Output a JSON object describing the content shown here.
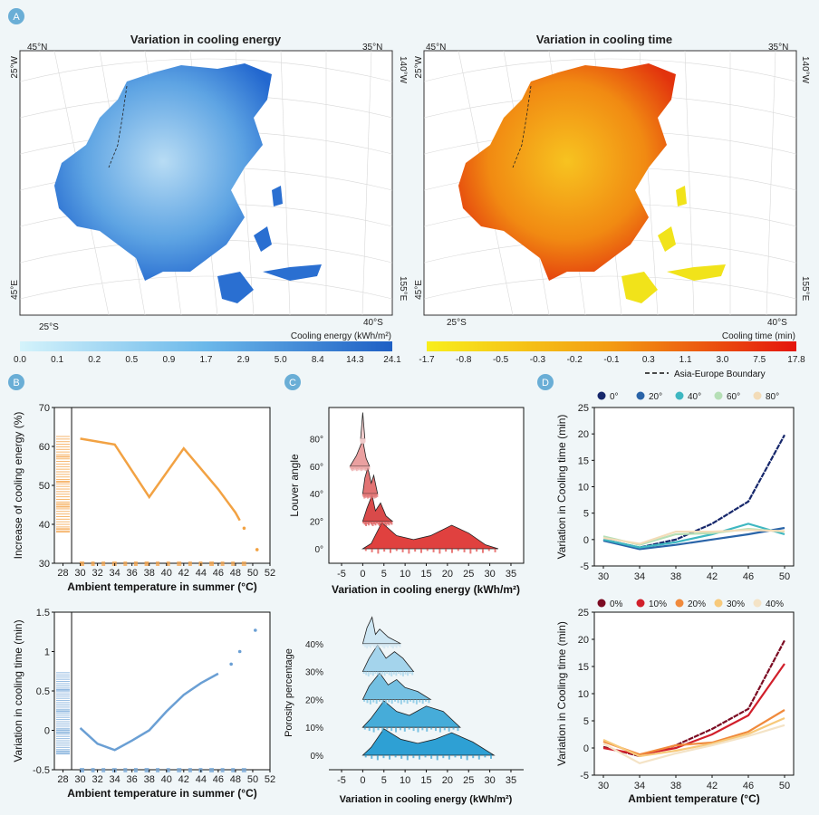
{
  "panels": {
    "a": "A",
    "b": "B",
    "c": "C",
    "d": "D"
  },
  "maps": [
    {
      "title": "Variation in cooling energy",
      "corners": {
        "tl": "45°N",
        "tr": "35°N",
        "lt": "25°W",
        "rt": "140°W",
        "lb": "45°E",
        "rb": "155°E",
        "bl": "25°S",
        "br": "40°S"
      },
      "colorbar": {
        "label": "Cooling energy (kWh/m²)",
        "ticks": [
          "0.0",
          "0.1",
          "0.2",
          "0.5",
          "0.9",
          "1.7",
          "2.9",
          "5.0",
          "8.4",
          "14.3",
          "24.1"
        ],
        "colors": [
          "#cdf0fa",
          "#1e5fc4"
        ]
      }
    },
    {
      "title": "Variation in cooling time",
      "corners": {
        "tl": "45°N",
        "tr": "35°N",
        "lt": "25°W",
        "rt": "140°W",
        "lb": "45°E",
        "rb": "155°E",
        "bl": "25°S",
        "br": "40°S"
      },
      "colorbar": {
        "label": "Cooling time (min)",
        "ticks": [
          "-1.7",
          "-0.8",
          "-0.5",
          "-0.3",
          "-0.2",
          "-0.1",
          "0.3",
          "1.1",
          "3.0",
          "7.5",
          "17.8"
        ],
        "colors": [
          "#f7ea1a",
          "#e8190e"
        ]
      }
    }
  ],
  "legend_boundary": "Asia-Europe Boundary",
  "chart_data": [
    {
      "id": "B1",
      "type": "line",
      "xlabel": "Ambient temperature in summer (°C)",
      "ylabel": "Increase of cooling energy (%)",
      "xlim": [
        27,
        52
      ],
      "ylim": [
        30,
        70
      ],
      "xticks": [
        28,
        30,
        32,
        34,
        36,
        38,
        40,
        42,
        44,
        46,
        48,
        50,
        52
      ],
      "yticks": [
        30,
        40,
        50,
        60,
        70
      ],
      "x": [
        30,
        34,
        38,
        42,
        46,
        48,
        48.5
      ],
      "y": [
        62,
        60.5,
        47,
        59.5,
        49,
        43,
        41
      ],
      "extra_points": [
        {
          "x": 49,
          "y": 39
        },
        {
          "x": 50.5,
          "y": 33.5
        }
      ],
      "color": "#f2a243"
    },
    {
      "id": "B2",
      "type": "line",
      "xlabel": "Ambient temperature in summer (°C)",
      "ylabel": "Variation in cooling time (min)",
      "xlim": [
        27,
        52
      ],
      "ylim": [
        -0.5,
        1.5
      ],
      "xticks": [
        28,
        30,
        32,
        34,
        36,
        38,
        40,
        42,
        44,
        46,
        48,
        50,
        52
      ],
      "yticks": [
        -0.5,
        0,
        0.5,
        1,
        1.5
      ],
      "x": [
        30,
        32,
        34,
        36,
        38,
        40,
        42,
        44,
        46
      ],
      "y": [
        0.03,
        -0.17,
        -0.25,
        -0.13,
        0,
        0.24,
        0.45,
        0.6,
        0.72
      ],
      "extra_points": [
        {
          "x": 47.5,
          "y": 0.84
        },
        {
          "x": 48.5,
          "y": 1.0
        },
        {
          "x": 50.3,
          "y": 1.27
        }
      ],
      "color": "#6a9fd4"
    },
    {
      "id": "C1",
      "type": "ridgeline",
      "xlabel": "Variation in cooling energy (kWh/m²)",
      "ylabel": "Louver angle",
      "xlim": [
        -8,
        38
      ],
      "xticks": [
        -5,
        0,
        5,
        10,
        15,
        20,
        25,
        30,
        35
      ],
      "categories": [
        "0°",
        "20°",
        "40°",
        "60°",
        "80°"
      ],
      "colors": [
        "#e0413f",
        "#d94a4a",
        "#e27474",
        "#eaa0a0",
        "#f1cccc"
      ]
    },
    {
      "id": "C2",
      "type": "ridgeline",
      "xlabel": "Variation in cooling energy (kWh/m²)",
      "ylabel": "Porosity percentage",
      "xlim": [
        -8,
        38
      ],
      "xticks": [
        -5,
        0,
        5,
        10,
        15,
        20,
        25,
        30,
        35
      ],
      "categories": [
        "0%",
        "10%",
        "20%",
        "30%",
        "40%"
      ],
      "colors": [
        "#2ea0d4",
        "#46acd9",
        "#74c0e2",
        "#a4d4ec",
        "#cde6f3"
      ]
    },
    {
      "id": "D1",
      "type": "line",
      "xlabel": "",
      "ylabel": "Variation in Cooling time (min)",
      "xlim": [
        29,
        51
      ],
      "ylim": [
        -5,
        25
      ],
      "xticks": [
        30,
        34,
        38,
        42,
        46,
        50
      ],
      "yticks": [
        -5,
        0,
        5,
        10,
        15,
        20,
        25
      ],
      "categories": [
        30,
        34,
        38,
        42,
        46,
        50
      ],
      "series": [
        {
          "name": "0°",
          "color": "#16276b",
          "values": [
            0,
            -1.5,
            0,
            3,
            7.2,
            19.8
          ]
        },
        {
          "name": "20°",
          "color": "#2a64a8",
          "values": [
            -0.2,
            -1.8,
            -1,
            0,
            1,
            2.2
          ]
        },
        {
          "name": "40°",
          "color": "#3eb7c1",
          "values": [
            0,
            -1.5,
            -0.5,
            1,
            3,
            1
          ]
        },
        {
          "name": "60°",
          "color": "#b5dfb6",
          "values": [
            0.6,
            -1,
            1,
            1.2,
            2,
            1.5
          ]
        },
        {
          "name": "80°",
          "color": "#f3dcb8",
          "values": [
            0.3,
            -0.8,
            1.5,
            1.5,
            1.8,
            1.6
          ]
        }
      ]
    },
    {
      "id": "D2",
      "type": "line",
      "xlabel": "Ambient temperature (°C)",
      "ylabel": "Variation in Cooling time (min)",
      "xlim": [
        29,
        51
      ],
      "ylim": [
        -5,
        25
      ],
      "xticks": [
        30,
        34,
        38,
        42,
        46,
        50
      ],
      "yticks": [
        -5,
        0,
        5,
        10,
        15,
        20,
        25
      ],
      "categories": [
        30,
        34,
        38,
        42,
        46,
        50
      ],
      "series": [
        {
          "name": "0%",
          "color": "#7b0b22",
          "values": [
            0.2,
            -1.5,
            0.5,
            3.5,
            7.2,
            19.8
          ]
        },
        {
          "name": "10%",
          "color": "#d11f2b",
          "values": [
            0,
            -1.2,
            0,
            2.5,
            6,
            15.5
          ]
        },
        {
          "name": "20%",
          "color": "#f08a3c",
          "values": [
            1.2,
            -1.2,
            0.5,
            1,
            3,
            7
          ]
        },
        {
          "name": "30%",
          "color": "#f7c97a",
          "values": [
            1.5,
            -1.5,
            -0.5,
            0.8,
            2.6,
            5.5
          ]
        },
        {
          "name": "40%",
          "color": "#f4e3c6",
          "values": [
            0.8,
            -2.8,
            -1,
            0.5,
            2.2,
            4.2
          ]
        }
      ]
    }
  ]
}
